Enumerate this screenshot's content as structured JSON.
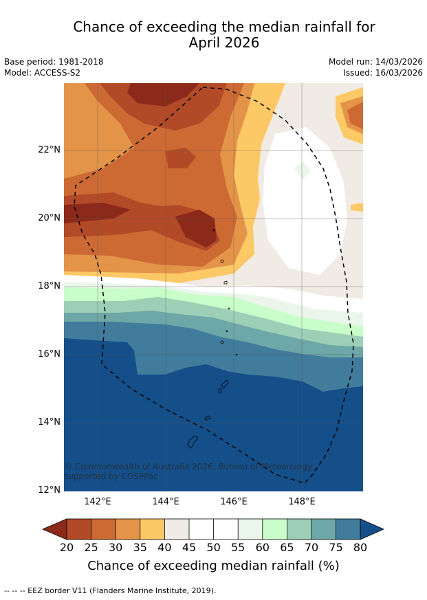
{
  "header": {
    "title_line1": "Chance of exceeding the median rainfall for",
    "title_line2": "April 2026",
    "base_period": "Base period: 1981-2018",
    "model": "Model: ACCESS-S2",
    "model_run": "Model run: 14/03/2026",
    "issued": "Issued: 16/03/2026"
  },
  "map": {
    "lat_labels": [
      "22°N",
      "20°N",
      "18°N",
      "16°N",
      "14°N",
      "12°N"
    ],
    "lon_labels": [
      "142°E",
      "144°E",
      "146°E",
      "148°E"
    ],
    "copyright": "© Commonwealth of Australia 2026, Bureau of Meteorology, supported by COSPPac",
    "region_labels": []
  },
  "colorbar": {
    "ticks": [
      "20",
      "25",
      "30",
      "35",
      "40",
      "45",
      "50",
      "55",
      "60",
      "65",
      "70",
      "75",
      "80"
    ],
    "label": "Chance of exceeding median rainfall (%)",
    "colors": [
      "#8b2a1a",
      "#b24a27",
      "#cd6a34",
      "#e39449",
      "#fdc866",
      "#f0ebe4",
      "#ffffff",
      "#ffffff",
      "#eaf6ea",
      "#c9fdc9",
      "#9ccfb5",
      "#6ea7a7",
      "#417c9c",
      "#144f8a"
    ]
  },
  "footnote": "--  --  -- EEZ border V11 (Flanders Marine Institute, 2019)."
}
